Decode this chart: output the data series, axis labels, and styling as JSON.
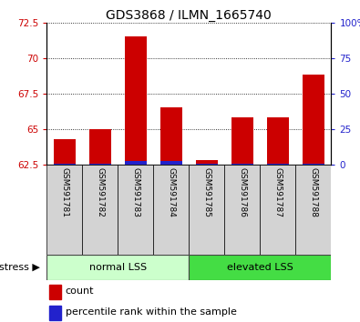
{
  "title": "GDS3868 / ILMN_1665740",
  "samples": [
    "GSM591781",
    "GSM591782",
    "GSM591783",
    "GSM591784",
    "GSM591785",
    "GSM591786",
    "GSM591787",
    "GSM591788"
  ],
  "count_values": [
    64.3,
    65.0,
    71.5,
    66.5,
    62.8,
    65.8,
    65.8,
    68.8
  ],
  "percentile_values": [
    0.5,
    0.5,
    2.0,
    2.0,
    0.5,
    0.5,
    0.5,
    0.5
  ],
  "ylim_left": [
    62.5,
    72.5
  ],
  "ylim_right": [
    0,
    100
  ],
  "yticks_left": [
    62.5,
    65.0,
    67.5,
    70.0,
    72.5
  ],
  "yticks_right": [
    0,
    25,
    50,
    75,
    100
  ],
  "ytick_labels_left": [
    "62.5",
    "65",
    "67.5",
    "70",
    "72.5"
  ],
  "ytick_labels_right": [
    "0",
    "25",
    "50",
    "75",
    "100%"
  ],
  "bar_color_red": "#cc0000",
  "bar_color_blue": "#2222cc",
  "bar_width": 0.6,
  "group_labels": [
    "normal LSS",
    "elevated LSS"
  ],
  "group_ranges": [
    [
      0,
      4
    ],
    [
      4,
      8
    ]
  ],
  "group_colors_light": [
    "#ccffcc",
    "#44dd44"
  ],
  "stress_label": "stress",
  "legend_items": [
    "count",
    "percentile rank within the sample"
  ],
  "grid_color": "#000000",
  "title_fontsize": 10,
  "tick_fontsize": 7.5,
  "sample_fontsize": 6.5,
  "group_fontsize": 8,
  "legend_fontsize": 8
}
